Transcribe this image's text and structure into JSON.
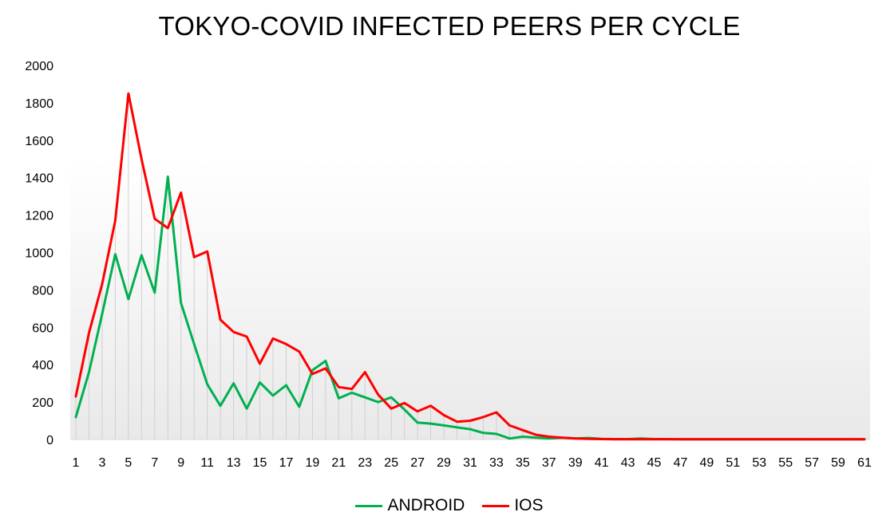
{
  "chart_data": {
    "type": "line",
    "title": "TOKYO-COVID INFECTED PEERS PER CYCLE",
    "xlabel": "",
    "ylabel": "",
    "ylim": [
      0,
      2000
    ],
    "yticks": [
      "0",
      "200",
      "400",
      "600",
      "800",
      "1000",
      "1200",
      "1400",
      "1600",
      "1800",
      "2000"
    ],
    "xticks": [
      "1",
      "3",
      "5",
      "7",
      "9",
      "11",
      "13",
      "15",
      "17",
      "19",
      "21",
      "23",
      "25",
      "27",
      "29",
      "31",
      "33",
      "35",
      "37",
      "39",
      "41",
      "43",
      "45",
      "47",
      "49",
      "51",
      "53",
      "55",
      "57",
      "59",
      "61"
    ],
    "x": [
      1,
      2,
      3,
      4,
      5,
      6,
      7,
      8,
      9,
      10,
      11,
      12,
      13,
      14,
      15,
      16,
      17,
      18,
      19,
      20,
      21,
      22,
      23,
      24,
      25,
      26,
      27,
      28,
      29,
      30,
      31,
      32,
      33,
      34,
      35,
      36,
      37,
      38,
      39,
      40,
      41,
      42,
      43,
      44,
      45,
      46,
      47,
      48,
      49,
      50,
      51,
      52,
      53,
      54,
      55,
      56,
      57,
      58,
      59,
      60,
      61
    ],
    "grid": "vertical lines at each cycle",
    "legend_position": "bottom",
    "series": [
      {
        "name": "ANDROID",
        "color": "#00b050",
        "values": [
          120,
          360,
          670,
          990,
          750,
          985,
          785,
          1405,
          730,
          510,
          295,
          180,
          300,
          165,
          305,
          235,
          290,
          175,
          370,
          420,
          220,
          250,
          225,
          200,
          225,
          160,
          90,
          85,
          75,
          65,
          55,
          35,
          30,
          5,
          15,
          10,
          5,
          10,
          5,
          8,
          3,
          2,
          2,
          5,
          2,
          2,
          1,
          1,
          1,
          1,
          1,
          1,
          1,
          1,
          1,
          1,
          1,
          1,
          1,
          1,
          1
        ]
      },
      {
        "name": "IOS",
        "color": "#ff0000",
        "values": [
          230,
          570,
          830,
          1170,
          1850,
          1500,
          1180,
          1130,
          1320,
          975,
          1005,
          640,
          575,
          550,
          405,
          540,
          510,
          470,
          350,
          380,
          280,
          270,
          360,
          240,
          165,
          195,
          150,
          180,
          130,
          95,
          100,
          120,
          145,
          75,
          50,
          25,
          15,
          10,
          5,
          3,
          2,
          1,
          1,
          1,
          1,
          1,
          1,
          1,
          1,
          1,
          1,
          1,
          1,
          1,
          1,
          1,
          1,
          1,
          1,
          1,
          1
        ]
      }
    ]
  }
}
